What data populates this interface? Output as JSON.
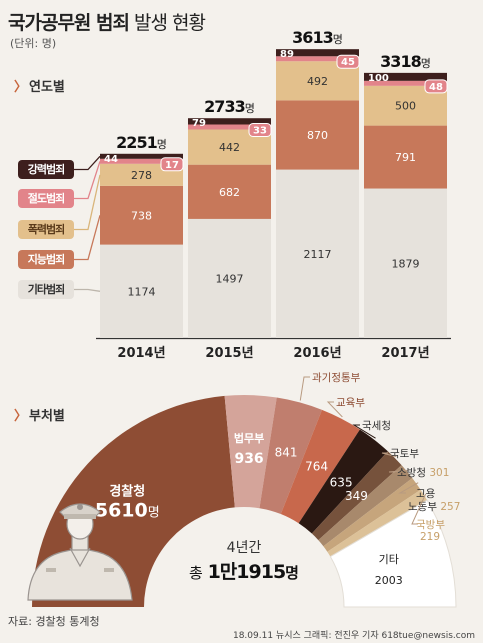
{
  "title_bold": "국가공무원 범죄",
  "title_rest": " 발생 현황",
  "unit": "(단위: 명)",
  "section_year": "연도별",
  "section_dept": "부처별",
  "source": "자료: 경찰청 통계청",
  "credit": "18.09.11 뉴시스 그래픽: 전진우 기자 618tue@newsis.com",
  "total_label": "4년간",
  "total_value": "총 1만1915명",
  "chart_data": [
    {
      "type": "bar",
      "stacked": true,
      "categories": [
        "2014년",
        "2015년",
        "2016년",
        "2017년"
      ],
      "totals": [
        2251,
        2733,
        3613,
        3318
      ],
      "total_suffix": "명",
      "series": [
        {
          "name": "기타범죄",
          "color": "#e6e2dc",
          "values": [
            1174,
            1497,
            2117,
            1879
          ]
        },
        {
          "name": "지능범죄",
          "color": "#c7785a",
          "values": [
            738,
            682,
            870,
            791
          ]
        },
        {
          "name": "폭력범죄",
          "color": "#e3c08c",
          "values": [
            278,
            442,
            492,
            500
          ]
        },
        {
          "name": "절도범죄",
          "color": "#e2848a",
          "values": [
            17,
            33,
            45,
            48
          ]
        },
        {
          "name": "강력범죄",
          "color": "#3d1f1d",
          "values": [
            44,
            79,
            89,
            100
          ]
        }
      ]
    },
    {
      "type": "pie",
      "shape": "semi-donut",
      "slices": [
        {
          "label": "경찰청",
          "value": 5610,
          "display": "5610명",
          "color": "#8e4d34"
        },
        {
          "label": "법무부",
          "value": 936,
          "display": "936",
          "color": "#d4a49a"
        },
        {
          "label": "과기정통부",
          "value": 841,
          "display": "841",
          "color": "#c07e6e"
        },
        {
          "label": "교육부",
          "value": 764,
          "display": "764",
          "color": "#c8684c"
        },
        {
          "label": "국세청",
          "value": 635,
          "display": "635",
          "color": "#2a1812"
        },
        {
          "label": "국토부",
          "value": 349,
          "display": "349",
          "color": "#76523c"
        },
        {
          "label": "소방청",
          "value": 301,
          "display": "301",
          "color": "#a8896c"
        },
        {
          "label": "고용노동부",
          "value": 257,
          "display": "257",
          "color": "#c6a57c"
        },
        {
          "label": "국방부",
          "value": 219,
          "display": "219",
          "color": "#dcc198"
        },
        {
          "label": "기타",
          "value": 2003,
          "display": "2003",
          "color": "#ffffff"
        }
      ]
    }
  ]
}
